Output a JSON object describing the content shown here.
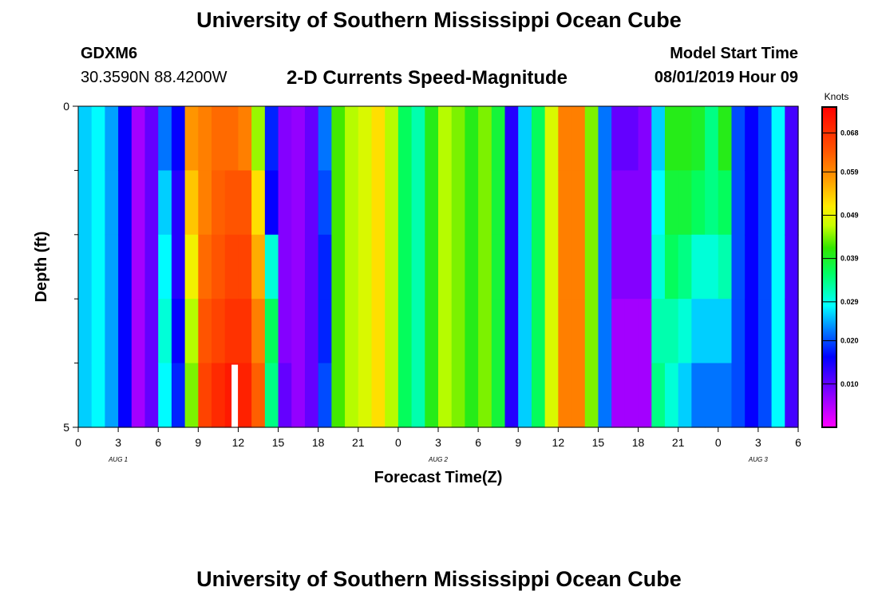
{
  "header": {
    "title": "University of Southern Mississippi Ocean Cube",
    "station": "GDXM6",
    "coordinates": "30.3590N 88.4200W",
    "chart_title": "2-D Currents Speed-Magnitude",
    "model_label": "Model Start Time",
    "model_time": "08/01/2019 Hour 09"
  },
  "footer": {
    "title": "University of Southern Mississippi Ocean Cube"
  },
  "chart_data": {
    "type": "heatmap",
    "title": "2-D Currents Speed-Magnitude",
    "xlabel": "Forecast Time(Z)",
    "ylabel": "Depth (ft)",
    "y_range": [
      0,
      5
    ],
    "y_tick_labels": [
      "0",
      "5"
    ],
    "y_minor_ticks": [
      1,
      2,
      3,
      4
    ],
    "x_tick_labels": [
      "0",
      "3",
      "6",
      "9",
      "12",
      "15",
      "18",
      "21",
      "0",
      "3",
      "6",
      "9",
      "12",
      "15",
      "18",
      "21",
      "0",
      "3",
      "6"
    ],
    "day_labels": [
      {
        "text": "AUG 1",
        "tick_index": 1
      },
      {
        "text": "AUG 2",
        "tick_index": 9
      },
      {
        "text": "AUG 3",
        "tick_index": 17
      }
    ],
    "hours_total": 54,
    "depth_bins": 5,
    "colorbar": {
      "label": "Knots",
      "min": 0,
      "max": 0.074,
      "ticks": [
        0.01,
        0.02,
        0.029,
        0.039,
        0.049,
        0.059,
        0.068
      ],
      "tick_labels": [
        "0.010",
        "0.020",
        "0.029",
        "0.039",
        "0.049",
        "0.059",
        "0.068"
      ]
    },
    "missing_cells": [
      [
        11.5,
        4
      ]
    ],
    "speed_by_hour": [
      [
        0.026,
        0.026,
        0.026,
        0.026,
        0.026
      ],
      [
        0.028,
        0.028,
        0.028,
        0.028,
        0.028
      ],
      [
        0.024,
        0.024,
        0.024,
        0.024,
        0.024
      ],
      [
        0.016,
        0.016,
        0.016,
        0.016,
        0.016
      ],
      [
        0.006,
        0.006,
        0.006,
        0.006,
        0.006
      ],
      [
        0.01,
        0.01,
        0.01,
        0.01,
        0.01
      ],
      [
        0.022,
        0.026,
        0.028,
        0.03,
        0.028
      ],
      [
        0.016,
        0.014,
        0.014,
        0.016,
        0.018
      ],
      [
        0.058,
        0.054,
        0.05,
        0.046,
        0.044
      ],
      [
        0.06,
        0.06,
        0.062,
        0.064,
        0.066
      ],
      [
        0.062,
        0.063,
        0.064,
        0.066,
        0.069
      ],
      [
        0.062,
        0.064,
        0.066,
        0.068,
        0.071
      ],
      [
        0.06,
        0.064,
        0.066,
        0.068,
        0.07
      ],
      [
        0.045,
        0.052,
        0.056,
        0.06,
        0.063
      ],
      [
        0.018,
        0.016,
        0.03,
        0.036,
        0.034
      ],
      [
        0.008,
        0.008,
        0.008,
        0.008,
        0.01
      ],
      [
        0.007,
        0.007,
        0.007,
        0.007,
        0.007
      ],
      [
        0.01,
        0.01,
        0.01,
        0.01,
        0.01
      ],
      [
        0.022,
        0.02,
        0.018,
        0.018,
        0.02
      ],
      [
        0.042,
        0.042,
        0.042,
        0.042,
        0.042
      ],
      [
        0.046,
        0.046,
        0.046,
        0.046,
        0.046
      ],
      [
        0.048,
        0.048,
        0.048,
        0.048,
        0.048
      ],
      [
        0.052,
        0.052,
        0.052,
        0.052,
        0.052
      ],
      [
        0.046,
        0.046,
        0.046,
        0.046,
        0.046
      ],
      [
        0.036,
        0.036,
        0.036,
        0.036,
        0.036
      ],
      [
        0.032,
        0.032,
        0.032,
        0.032,
        0.032
      ],
      [
        0.04,
        0.04,
        0.04,
        0.04,
        0.04
      ],
      [
        0.046,
        0.046,
        0.046,
        0.046,
        0.046
      ],
      [
        0.044,
        0.044,
        0.044,
        0.044,
        0.044
      ],
      [
        0.04,
        0.04,
        0.04,
        0.04,
        0.04
      ],
      [
        0.044,
        0.044,
        0.044,
        0.044,
        0.044
      ],
      [
        0.038,
        0.038,
        0.038,
        0.038,
        0.038
      ],
      [
        0.014,
        0.014,
        0.014,
        0.014,
        0.014
      ],
      [
        0.026,
        0.026,
        0.026,
        0.026,
        0.026
      ],
      [
        0.036,
        0.036,
        0.036,
        0.036,
        0.036
      ],
      [
        0.048,
        0.048,
        0.048,
        0.048,
        0.048
      ],
      [
        0.06,
        0.06,
        0.06,
        0.06,
        0.06
      ],
      [
        0.06,
        0.06,
        0.06,
        0.06,
        0.06
      ],
      [
        0.044,
        0.044,
        0.044,
        0.044,
        0.044
      ],
      [
        0.022,
        0.022,
        0.022,
        0.022,
        0.022
      ],
      [
        0.01,
        0.008,
        0.008,
        0.006,
        0.006
      ],
      [
        0.01,
        0.008,
        0.008,
        0.006,
        0.006
      ],
      [
        0.008,
        0.008,
        0.008,
        0.006,
        0.006
      ],
      [
        0.026,
        0.028,
        0.03,
        0.032,
        0.034
      ],
      [
        0.04,
        0.038,
        0.036,
        0.032,
        0.03
      ],
      [
        0.04,
        0.038,
        0.034,
        0.03,
        0.026
      ],
      [
        0.039,
        0.036,
        0.03,
        0.026,
        0.022
      ],
      [
        0.034,
        0.034,
        0.03,
        0.026,
        0.022
      ],
      [
        0.04,
        0.036,
        0.032,
        0.026,
        0.022
      ],
      [
        0.02,
        0.02,
        0.02,
        0.02,
        0.02
      ],
      [
        0.016,
        0.016,
        0.016,
        0.016,
        0.016
      ],
      [
        0.02,
        0.02,
        0.02,
        0.02,
        0.02
      ],
      [
        0.028,
        0.028,
        0.028,
        0.028,
        0.028
      ],
      [
        0.012,
        0.012,
        0.012,
        0.012,
        0.012
      ]
    ]
  }
}
